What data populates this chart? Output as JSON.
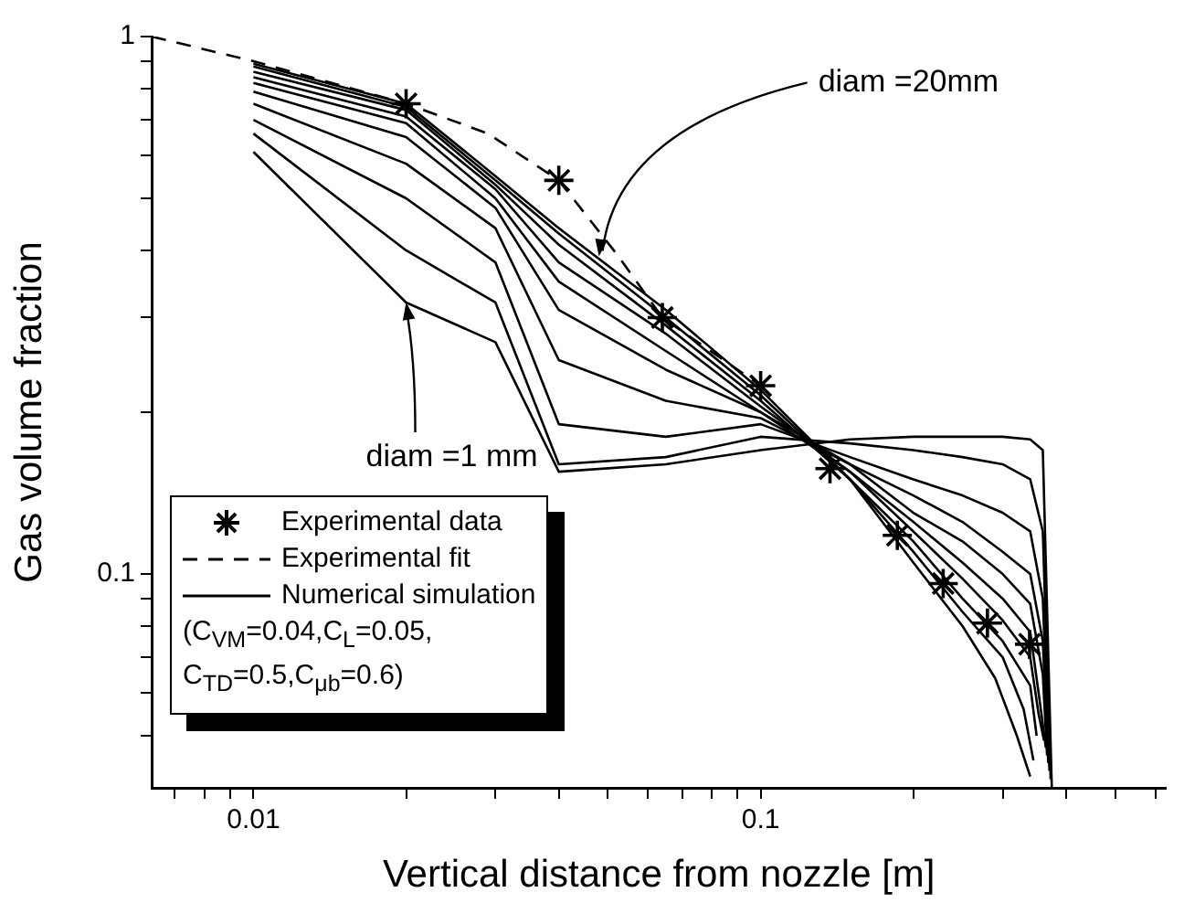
{
  "chart_data": {
    "type": "line",
    "xlabel": "Vertical distance from nozzle [m]",
    "ylabel": "Gas volume fraction",
    "log": "xy",
    "grid": false,
    "legend": "bottom left",
    "xlim": [
      0.0063,
      0.63
    ],
    "xticks": [
      {
        "value": 0.007,
        "label": null
      },
      {
        "value": 0.008,
        "label": null
      },
      {
        "value": 0.009,
        "label": null
      },
      0.01,
      {
        "value": 0.02,
        "label": null
      },
      {
        "value": 0.03,
        "label": null
      },
      {
        "value": 0.04,
        "label": null
      },
      {
        "value": 0.05,
        "label": null
      },
      {
        "value": 0.06,
        "label": null
      },
      {
        "value": 0.07,
        "label": null
      },
      {
        "value": 0.08,
        "label": null
      },
      {
        "value": 0.09,
        "label": null
      },
      0.1,
      {
        "value": 0.2,
        "label": null
      },
      {
        "value": 0.3,
        "label": null
      },
      {
        "value": 0.4,
        "label": null
      },
      {
        "value": 0.5,
        "label": null
      },
      {
        "value": 0.6,
        "label": null
      }
    ],
    "ylim": [
      0.04,
      1
    ],
    "yticks": [
      {
        "value": 0.05,
        "label": null
      },
      {
        "value": 0.06,
        "label": null
      },
      {
        "value": 0.07,
        "label": null
      },
      {
        "value": 0.08,
        "label": null
      },
      {
        "value": 0.09,
        "label": null
      },
      0.1,
      {
        "value": 0.2,
        "label": null
      },
      {
        "value": 0.3,
        "label": null
      },
      {
        "value": 0.4,
        "label": null
      },
      {
        "value": 0.5,
        "label": null
      },
      {
        "value": 0.6,
        "label": null
      },
      {
        "value": 0.7,
        "label": null
      },
      {
        "value": 0.8,
        "label": null
      },
      {
        "value": 0.9,
        "label": null
      },
      1
    ],
    "annotations": [
      {
        "text": "diam =20mm",
        "x": 0.048,
        "y": 0.39
      },
      {
        "text": "diam =1 mm",
        "x": 0.02,
        "y": 0.32
      },
      "(C$_{VM}$=0.04,C$_{L}$=0.05,",
      "C$_{TD}$=0.5,C$_{μb}$=0.6)"
    ],
    "series": [
      {
        "name": "Experimental data",
        "type": "scatter",
        "marker": "cross",
        "color": "#000000",
        "x": [
          0.02,
          0.04,
          0.064,
          0.1,
          0.137,
          0.186,
          0.229,
          0.28,
          0.339
        ],
        "values": [
          0.75,
          0.54,
          0.3,
          0.224,
          0.157,
          0.118,
          0.096,
          0.081,
          0.074
        ]
      },
      {
        "name": "Experimental fit",
        "line_style": "dashed",
        "color": "#000000",
        "x": [
          0.0063,
          0.01,
          0.02,
          0.029,
          0.04,
          0.052,
          0.064,
          0.1
        ],
        "values": [
          1,
          0.9,
          0.75,
          0.66,
          0.54,
          0.394,
          0.3,
          0.224
        ]
      },
      {
        "name": "Numerical simulation",
        "line_style": "solid",
        "color": "#000000",
        "x": [
          0.01,
          0.02,
          0.03,
          0.04,
          0.065,
          0.1,
          0.15,
          0.2,
          0.25,
          0.3,
          0.34,
          0.36,
          0.375
        ],
        "values": [
          0.61,
          0.32,
          0.27,
          0.155,
          0.16,
          0.17,
          0.178,
          0.18,
          0.18,
          0.18,
          0.178,
          0.17,
          0.04
        ]
      },
      {
        "line_style": "solid",
        "color": "#000000",
        "x": [
          0.01,
          0.02,
          0.03,
          0.04,
          0.065,
          0.1,
          0.15,
          0.2,
          0.25,
          0.3,
          0.34,
          0.36,
          0.373
        ],
        "values": [
          0.66,
          0.4,
          0.32,
          0.16,
          0.165,
          0.18,
          0.175,
          0.17,
          0.165,
          0.16,
          0.15,
          0.12,
          0.0415
        ]
      },
      {
        "line_style": "solid",
        "color": "#000000",
        "x": [
          0.01,
          0.02,
          0.03,
          0.04,
          0.065,
          0.1,
          0.15,
          0.2,
          0.25,
          0.3,
          0.34,
          0.36,
          0.371
        ],
        "values": [
          0.7,
          0.5,
          0.38,
          0.19,
          0.18,
          0.19,
          0.165,
          0.15,
          0.14,
          0.13,
          0.12,
          0.09,
          0.043
        ]
      },
      {
        "line_style": "solid",
        "color": "#000000",
        "x": [
          0.01,
          0.02,
          0.03,
          0.04,
          0.065,
          0.1,
          0.15,
          0.2,
          0.25,
          0.3,
          0.34,
          0.36,
          0.369
        ],
        "values": [
          0.75,
          0.58,
          0.44,
          0.25,
          0.21,
          0.195,
          0.16,
          0.14,
          0.125,
          0.11,
          0.1,
          0.075,
          0.0445
        ]
      },
      {
        "line_style": "solid",
        "color": "#000000",
        "x": [
          0.01,
          0.02,
          0.03,
          0.04,
          0.065,
          0.1,
          0.15,
          0.2,
          0.25,
          0.3,
          0.34,
          0.36,
          0.367
        ],
        "values": [
          0.79,
          0.65,
          0.48,
          0.31,
          0.24,
          0.2,
          0.16,
          0.13,
          0.115,
          0.1,
          0.088,
          0.065,
          0.046
        ]
      },
      {
        "line_style": "solid",
        "color": "#000000",
        "x": [
          0.01,
          0.02,
          0.03,
          0.04,
          0.065,
          0.1,
          0.15,
          0.2,
          0.25,
          0.3,
          0.34,
          0.355,
          0.365
        ],
        "values": [
          0.82,
          0.69,
          0.5,
          0.35,
          0.26,
          0.2,
          0.155,
          0.125,
          0.105,
          0.09,
          0.078,
          0.058,
          0.0475
        ]
      },
      {
        "line_style": "solid",
        "color": "#000000",
        "x": [
          0.01,
          0.02,
          0.03,
          0.04,
          0.065,
          0.1,
          0.15,
          0.2,
          0.25,
          0.3,
          0.34,
          0.353,
          0.362
        ],
        "values": [
          0.84,
          0.71,
          0.52,
          0.38,
          0.28,
          0.205,
          0.155,
          0.12,
          0.098,
          0.082,
          0.07,
          0.055,
          0.049
        ]
      },
      {
        "line_style": "solid",
        "color": "#000000",
        "x": [
          0.01,
          0.02,
          0.03,
          0.04,
          0.065,
          0.1,
          0.15,
          0.2,
          0.25,
          0.3,
          0.34,
          0.35
        ],
        "values": [
          0.86,
          0.73,
          0.53,
          0.41,
          0.29,
          0.21,
          0.15,
          0.115,
          0.09,
          0.075,
          0.062,
          0.05
        ]
      },
      {
        "line_style": "solid",
        "color": "#000000",
        "x": [
          0.01,
          0.02,
          0.03,
          0.04,
          0.065,
          0.1,
          0.15,
          0.2,
          0.25,
          0.3,
          0.33,
          0.345
        ],
        "values": [
          0.88,
          0.74,
          0.54,
          0.43,
          0.3,
          0.215,
          0.15,
          0.11,
          0.085,
          0.07,
          0.056,
          0.045
        ]
      },
      {
        "line_style": "solid",
        "color": "#000000",
        "x": [
          0.01,
          0.02,
          0.03,
          0.04,
          0.065,
          0.1,
          0.15,
          0.2,
          0.25,
          0.29,
          0.32,
          0.34
        ],
        "values": [
          0.89,
          0.75,
          0.55,
          0.44,
          0.31,
          0.22,
          0.15,
          0.105,
          0.08,
          0.064,
          0.05,
          0.042
        ]
      }
    ]
  }
}
